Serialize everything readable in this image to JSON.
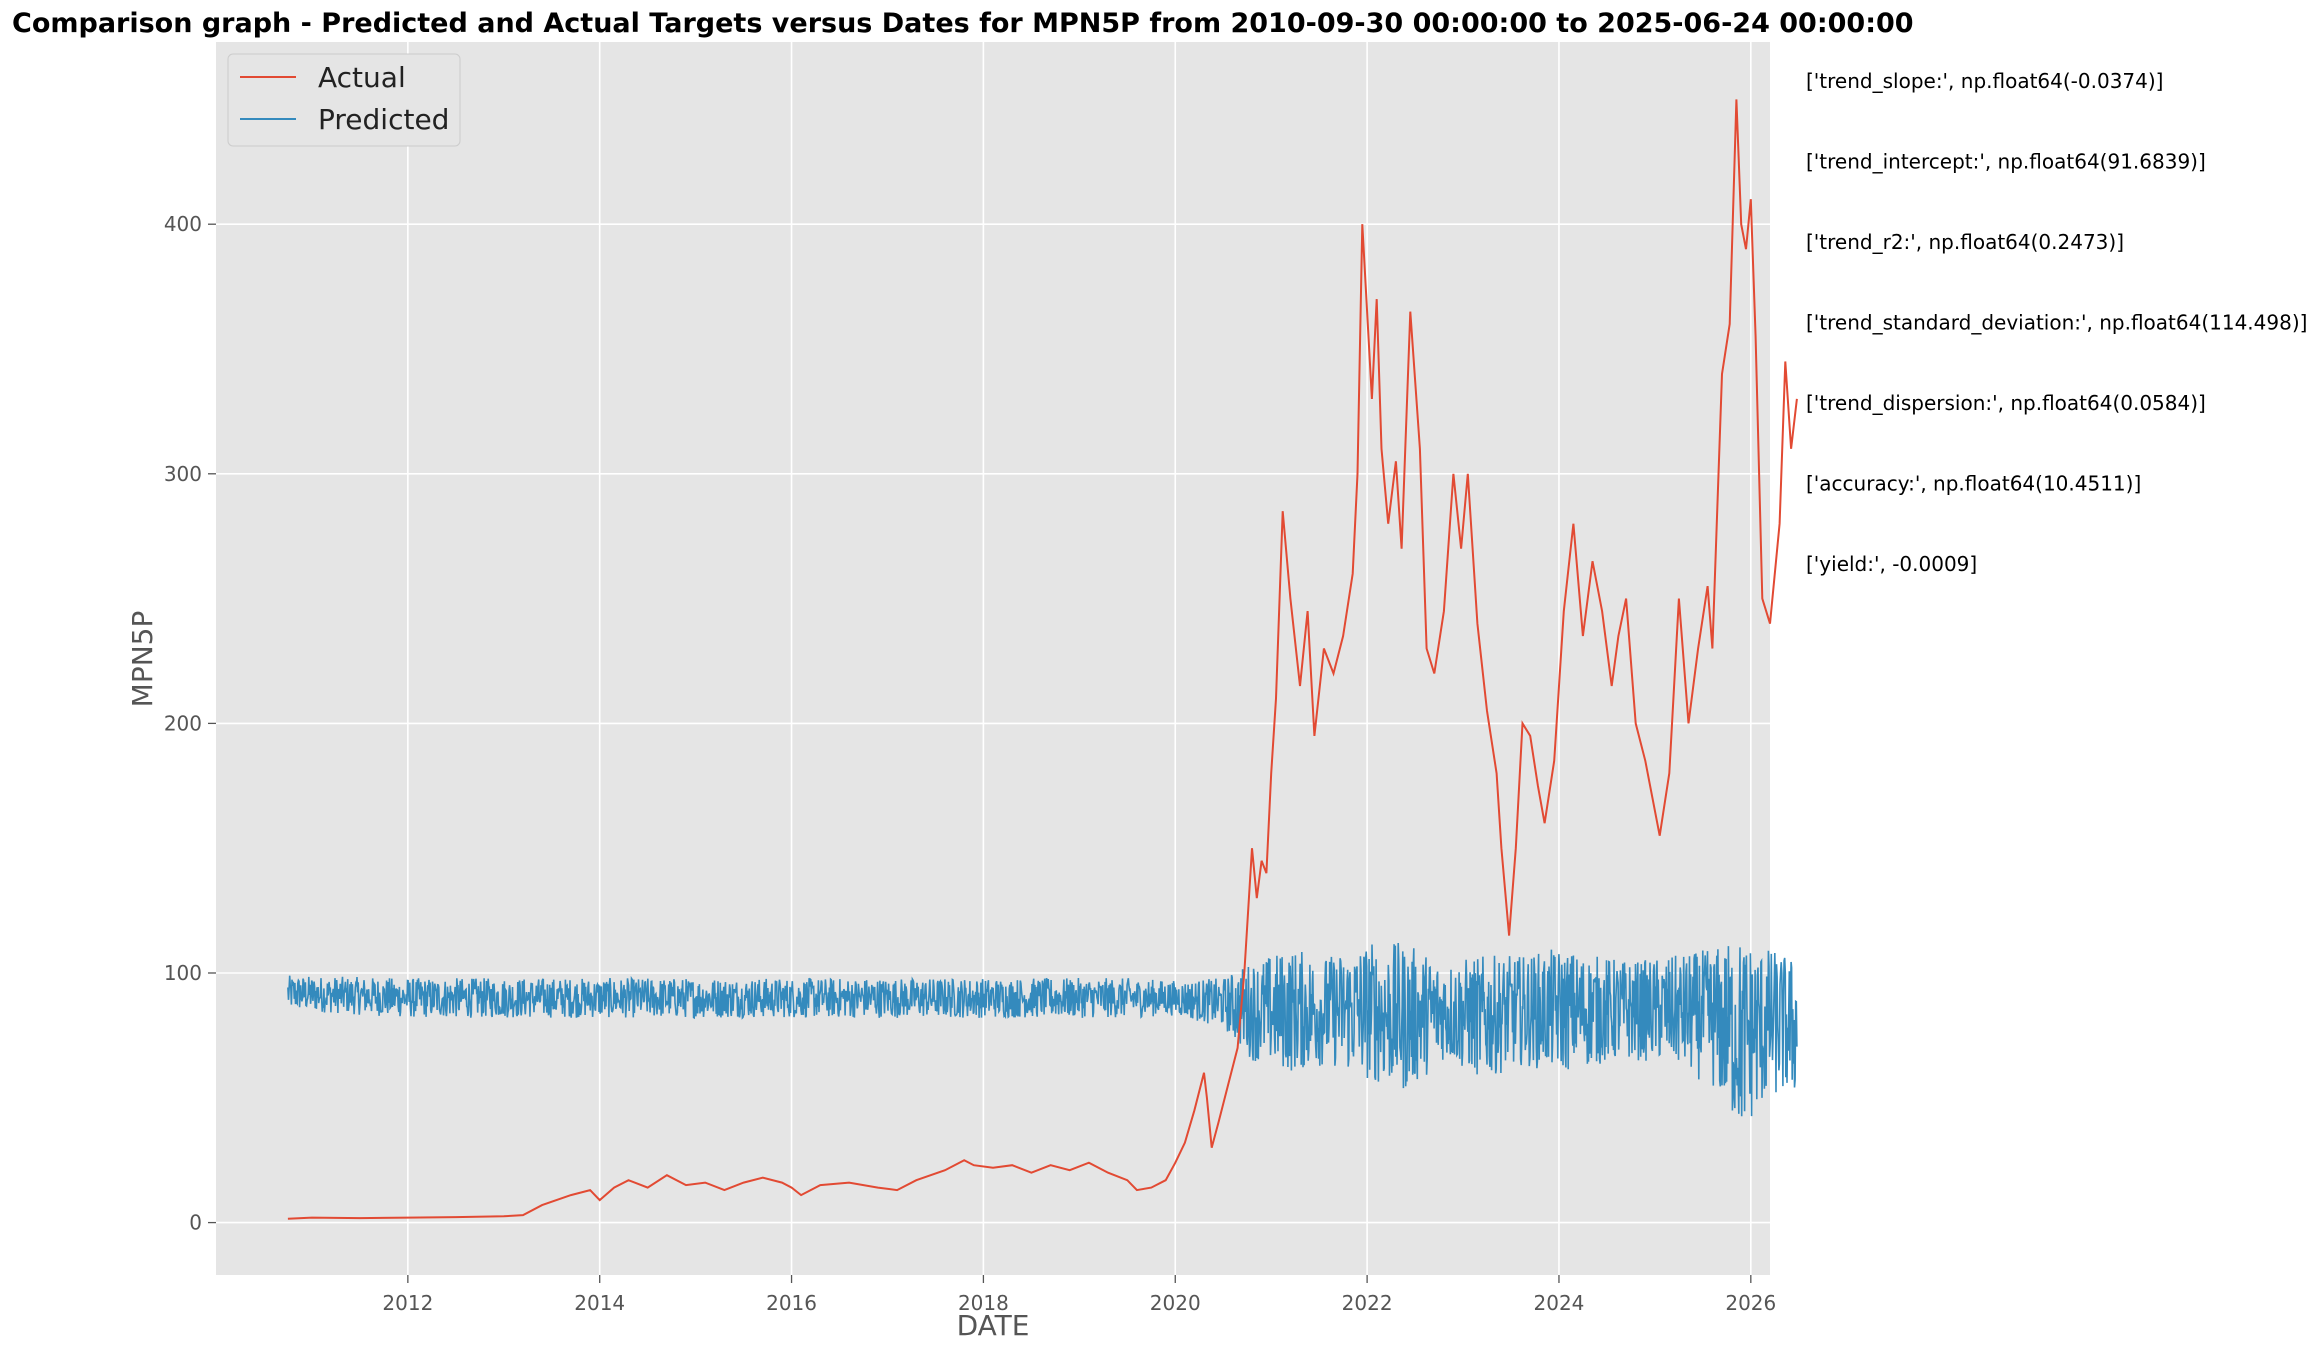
{
  "chart_data": {
    "type": "line",
    "title": "Comparison graph - Predicted and Actual Targets versus Dates for MPN5P from 2010-09-30 00:00:00 to 2025-06-24 00:00:00",
    "xlabel": "DATE",
    "ylabel": "MPN5P",
    "xlim": [
      2010.0,
      2026.2
    ],
    "ylim": [
      -21,
      473
    ],
    "x_ticks": [
      2012,
      2014,
      2016,
      2018,
      2020,
      2022,
      2024,
      2026
    ],
    "x_tick_labels": [
      "2012",
      "2014",
      "2016",
      "2018",
      "2020",
      "2022",
      "2024",
      "2026"
    ],
    "y_ticks": [
      0,
      100,
      200,
      300,
      400
    ],
    "y_tick_labels": [
      "0",
      "100",
      "200",
      "300",
      "400"
    ],
    "grid": true,
    "legend_position": "top-left",
    "series": [
      {
        "name": "Actual",
        "color": "#E24A33",
        "points": [
          [
            2010.75,
            1.5
          ],
          [
            2011.0,
            2.0
          ],
          [
            2011.5,
            1.8
          ],
          [
            2012.0,
            2.0
          ],
          [
            2012.5,
            2.2
          ],
          [
            2013.0,
            2.5
          ],
          [
            2013.2,
            3.0
          ],
          [
            2013.4,
            7.0
          ],
          [
            2013.7,
            11.0
          ],
          [
            2013.9,
            13.0
          ],
          [
            2014.0,
            9.0
          ],
          [
            2014.15,
            14.0
          ],
          [
            2014.3,
            17.0
          ],
          [
            2014.5,
            14.0
          ],
          [
            2014.7,
            19.0
          ],
          [
            2014.9,
            15.0
          ],
          [
            2015.1,
            16.0
          ],
          [
            2015.3,
            13.0
          ],
          [
            2015.5,
            16.0
          ],
          [
            2015.7,
            18.0
          ],
          [
            2015.9,
            16.0
          ],
          [
            2016.0,
            14.0
          ],
          [
            2016.1,
            11.0
          ],
          [
            2016.3,
            15.0
          ],
          [
            2016.6,
            16.0
          ],
          [
            2016.9,
            14.0
          ],
          [
            2017.1,
            13.0
          ],
          [
            2017.3,
            17.0
          ],
          [
            2017.6,
            21.0
          ],
          [
            2017.8,
            25.0
          ],
          [
            2017.9,
            23.0
          ],
          [
            2018.1,
            22.0
          ],
          [
            2018.3,
            23.0
          ],
          [
            2018.5,
            20.0
          ],
          [
            2018.7,
            23.0
          ],
          [
            2018.9,
            21.0
          ],
          [
            2019.1,
            24.0
          ],
          [
            2019.3,
            20.0
          ],
          [
            2019.5,
            17.0
          ],
          [
            2019.6,
            13.0
          ],
          [
            2019.75,
            14.0
          ],
          [
            2019.9,
            17.0
          ],
          [
            2020.0,
            24.0
          ],
          [
            2020.1,
            32.0
          ],
          [
            2020.2,
            45.0
          ],
          [
            2020.3,
            60.0
          ],
          [
            2020.33,
            50.0
          ],
          [
            2020.38,
            30.0
          ],
          [
            2020.45,
            40.0
          ],
          [
            2020.55,
            55.0
          ],
          [
            2020.65,
            70.0
          ],
          [
            2020.72,
            100.0
          ],
          [
            2020.8,
            150.0
          ],
          [
            2020.85,
            130.0
          ],
          [
            2020.9,
            145.0
          ],
          [
            2020.95,
            140.0
          ],
          [
            2021.0,
            180.0
          ],
          [
            2021.05,
            210.0
          ],
          [
            2021.12,
            285.0
          ],
          [
            2021.2,
            250.0
          ],
          [
            2021.3,
            215.0
          ],
          [
            2021.38,
            245.0
          ],
          [
            2021.45,
            195.0
          ],
          [
            2021.55,
            230.0
          ],
          [
            2021.65,
            220.0
          ],
          [
            2021.75,
            235.0
          ],
          [
            2021.85,
            260.0
          ],
          [
            2021.9,
            300.0
          ],
          [
            2021.95,
            400.0
          ],
          [
            2022.0,
            365.0
          ],
          [
            2022.05,
            330.0
          ],
          [
            2022.1,
            370.0
          ],
          [
            2022.15,
            310.0
          ],
          [
            2022.22,
            280.0
          ],
          [
            2022.3,
            305.0
          ],
          [
            2022.36,
            270.0
          ],
          [
            2022.45,
            365.0
          ],
          [
            2022.55,
            310.0
          ],
          [
            2022.62,
            230.0
          ],
          [
            2022.7,
            220.0
          ],
          [
            2022.8,
            245.0
          ],
          [
            2022.9,
            300.0
          ],
          [
            2022.98,
            270.0
          ],
          [
            2023.05,
            300.0
          ],
          [
            2023.15,
            240.0
          ],
          [
            2023.25,
            205.0
          ],
          [
            2023.35,
            180.0
          ],
          [
            2023.4,
            150.0
          ],
          [
            2023.48,
            115.0
          ],
          [
            2023.55,
            150.0
          ],
          [
            2023.62,
            200.0
          ],
          [
            2023.7,
            195.0
          ],
          [
            2023.78,
            175.0
          ],
          [
            2023.85,
            160.0
          ],
          [
            2023.95,
            185.0
          ],
          [
            2024.05,
            245.0
          ],
          [
            2024.15,
            280.0
          ],
          [
            2024.25,
            235.0
          ],
          [
            2024.35,
            265.0
          ],
          [
            2024.45,
            245.0
          ],
          [
            2024.55,
            215.0
          ],
          [
            2024.62,
            235.0
          ],
          [
            2024.7,
            250.0
          ],
          [
            2024.8,
            200.0
          ],
          [
            2024.9,
            185.0
          ],
          [
            2024.95,
            175.0
          ],
          [
            2025.05,
            155.0
          ],
          [
            2025.15,
            180.0
          ],
          [
            2025.25,
            250.0
          ],
          [
            2025.35,
            200.0
          ],
          [
            2025.45,
            230.0
          ],
          [
            2025.55,
            255.0
          ],
          [
            2025.6,
            230.0
          ],
          [
            2025.7,
            340.0
          ],
          [
            2025.78,
            360.0
          ],
          [
            2025.85,
            450.0
          ],
          [
            2025.9,
            400.0
          ],
          [
            2025.95,
            390.0
          ],
          [
            2026.0,
            410.0
          ],
          [
            2026.05,
            355.0
          ],
          [
            2026.12,
            250.0
          ],
          [
            2026.2,
            240.0
          ],
          [
            2026.3,
            280.0
          ],
          [
            2026.36,
            345.0
          ],
          [
            2026.42,
            310.0
          ],
          [
            2026.48,
            330.0
          ]
        ]
      },
      {
        "name": "Predicted",
        "color": "#348ABD",
        "band_points": [
          [
            2010.75,
            92,
            7
          ],
          [
            2012.0,
            90,
            8
          ],
          [
            2014.0,
            90,
            8
          ],
          [
            2016.0,
            90,
            8
          ],
          [
            2018.0,
            90,
            8
          ],
          [
            2019.5,
            90,
            8
          ],
          [
            2020.0,
            90,
            7
          ],
          [
            2020.5,
            88,
            10
          ],
          [
            2020.8,
            85,
            20
          ],
          [
            2021.2,
            85,
            25
          ],
          [
            2021.6,
            85,
            22
          ],
          [
            2022.0,
            85,
            28
          ],
          [
            2022.4,
            82,
            30
          ],
          [
            2022.8,
            85,
            20
          ],
          [
            2023.2,
            82,
            25
          ],
          [
            2023.6,
            85,
            22
          ],
          [
            2024.0,
            85,
            25
          ],
          [
            2024.4,
            85,
            22
          ],
          [
            2024.8,
            85,
            20
          ],
          [
            2025.2,
            85,
            22
          ],
          [
            2025.6,
            82,
            28
          ],
          [
            2025.9,
            75,
            40
          ],
          [
            2026.2,
            80,
            30
          ],
          [
            2026.48,
            78,
            28
          ]
        ]
      }
    ],
    "annotations": [
      "['trend_slope:', np.float64(-0.0374)]",
      "['trend_intercept:', np.float64(91.6839)]",
      "['trend_r2:', np.float64(0.2473)]",
      "['trend_standard_deviation:', np.float64(114.498)]",
      "['trend_dispersion:', np.float64(0.0584)]",
      "['accuracy:', np.float64(10.4511)]",
      "['yield:', -0.0009]"
    ]
  }
}
